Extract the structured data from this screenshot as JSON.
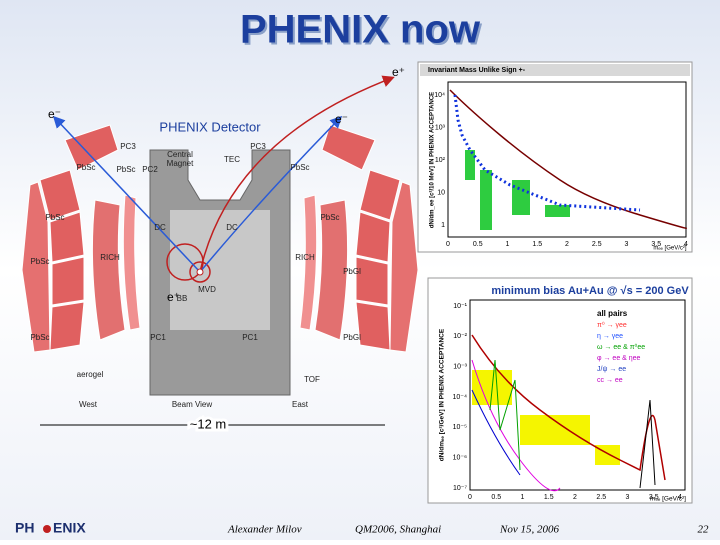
{
  "header": {
    "title": "PHENIX now"
  },
  "detector": {
    "title": "PHENIX Detector",
    "labels": [
      "PC3",
      "Central",
      "Magnet",
      "TEC",
      "PC3",
      "PbSc",
      "PC2",
      "PbSc",
      "PbSc",
      "PbSc",
      "PbSc",
      "DC",
      "DC",
      "RICH",
      "RICH",
      "BB",
      "MVD",
      "PbSc",
      "PbGl",
      "PbSc",
      "PbGl",
      "PC1",
      "PC1",
      "aerogel",
      "TOF",
      "West",
      "Beam View",
      "East"
    ],
    "annotations": {
      "e_plus_top": "e⁺",
      "e_minus_left": "e⁻",
      "e_minus_right": "e⁻",
      "e_plus_bottom": "e⁺",
      "scale": "~12 m"
    }
  },
  "plot_top": {
    "title": "Invariant Mass Unlike Sign +-",
    "ylabel": "dN/dm_ee [c²/10 MeV] IN PHENIX ACCEPTANCE",
    "xlabel": "mₑₑ [GeV/c²]",
    "xticks": [
      "0",
      "0.5",
      "1",
      "1.5",
      "2",
      "2.5",
      "3",
      "3.5",
      "4"
    ],
    "yticks": [
      "10⁴",
      "10³",
      "10²",
      "10",
      "1"
    ]
  },
  "plot_bottom": {
    "title": "minimum bias Au+Au @ √s = 200 GeV",
    "ylabel": "dN/dmₑₑ [c²/GeV] IN PHENIX ACCEPTANCE",
    "xlabel": "mₑₑ [GeV/c²]",
    "legend": [
      "all pairs",
      "π⁰ → γee",
      "η → γee",
      "ω → ee & π⁰ee",
      "φ → ee & ηee",
      "J/ψ → ee",
      "cc → ee"
    ],
    "xticks": [
      "0",
      "0.5",
      "1",
      "1.5",
      "2",
      "2.5",
      "3",
      "3.5",
      "4"
    ],
    "yticks": [
      "10⁻¹",
      "10⁻²",
      "10⁻³",
      "10⁻⁴",
      "10⁻⁵",
      "10⁻⁶",
      "10⁻⁷"
    ]
  },
  "footer": {
    "logo_left": "PH",
    "logo_right": "ENIX",
    "author": "Alexander Milov",
    "conference": "QM2006, Shanghai",
    "date": "Nov 15, 2006",
    "page": "22"
  }
}
